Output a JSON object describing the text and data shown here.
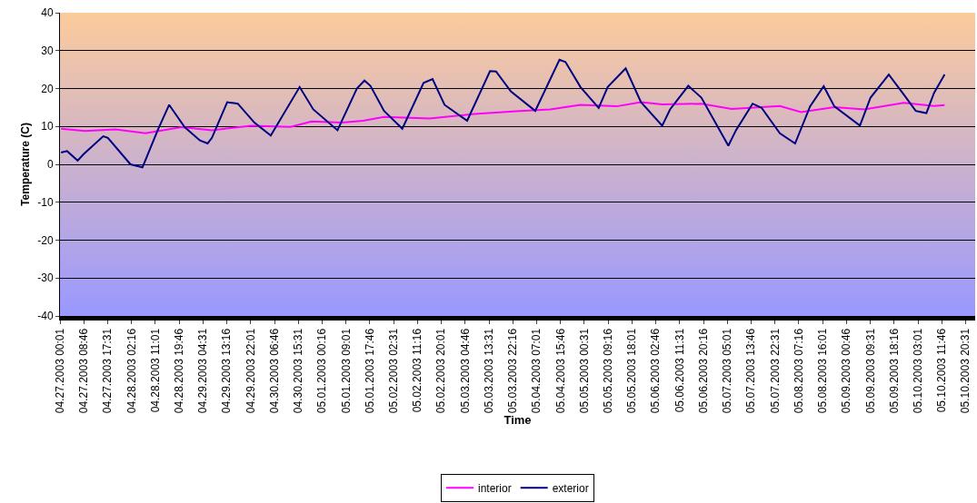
{
  "chart_data": {
    "type": "line",
    "xlabel": "Time",
    "ylabel": "Temperature (C)",
    "xlim": [
      "2003-04-27T00:01",
      "2003-05-11T00:01"
    ],
    "xticks": [
      {
        "value": "2003-04-27T00:01",
        "label": "04.27.2003 00:01"
      },
      {
        "value": "2003-04-27T08:46",
        "label": "04.27.2003 08:46"
      },
      {
        "value": "2003-04-27T17:31",
        "label": "04.27.2003 17:31"
      },
      {
        "value": "2003-04-28T02:16",
        "label": "04.28.2003 02:16"
      },
      {
        "value": "2003-04-28T11:01",
        "label": "04.28.2003 11:01"
      },
      {
        "value": "2003-04-28T19:46",
        "label": "04.28.2003 19:46"
      },
      {
        "value": "2003-04-29T04:31",
        "label": "04.29.2003 04:31"
      },
      {
        "value": "2003-04-29T13:16",
        "label": "04.29.2003 13:16"
      },
      {
        "value": "2003-04-29T22:01",
        "label": "04.29.2003 22:01"
      },
      {
        "value": "2003-04-30T06:46",
        "label": "04.30.2003 06:46"
      },
      {
        "value": "2003-04-30T15:31",
        "label": "04.30.2003 15:31"
      },
      {
        "value": "2003-05-01T00:16",
        "label": "05.01.2003 00:16"
      },
      {
        "value": "2003-05-01T09:01",
        "label": "05.01.2003 09:01"
      },
      {
        "value": "2003-05-01T17:46",
        "label": "05.01.2003 17:46"
      },
      {
        "value": "2003-05-02T02:31",
        "label": "05.02.2003 02:31"
      },
      {
        "value": "2003-05-02T11:16",
        "label": "05.02.2003 11:16"
      },
      {
        "value": "2003-05-02T20:01",
        "label": "05.02.2003 20:01"
      },
      {
        "value": "2003-05-03T04:46",
        "label": "05.03.2003 04:46"
      },
      {
        "value": "2003-05-03T13:31",
        "label": "05.03.2003 13:31"
      },
      {
        "value": "2003-05-03T22:16",
        "label": "05.03.2003 22:16"
      },
      {
        "value": "2003-05-04T07:01",
        "label": "05.04.2003 07:01"
      },
      {
        "value": "2003-05-04T15:46",
        "label": "05.04.2003 15:46"
      },
      {
        "value": "2003-05-05T00:31",
        "label": "05.05.2003 00:31"
      },
      {
        "value": "2003-05-05T09:16",
        "label": "05.05.2003 09:16"
      },
      {
        "value": "2003-05-05T18:01",
        "label": "05.05.2003 18:01"
      },
      {
        "value": "2003-05-06T02:46",
        "label": "05.06.2003 02:46"
      },
      {
        "value": "2003-05-06T11:31",
        "label": "05.06.2003 11:31"
      },
      {
        "value": "2003-05-06T20:16",
        "label": "05.06.2003 20:16"
      },
      {
        "value": "2003-05-07T05:01",
        "label": "05.07.2003 05:01"
      },
      {
        "value": "2003-05-07T13:46",
        "label": "05.07.2003 13:46"
      },
      {
        "value": "2003-05-07T22:31",
        "label": "05.07.2003 22:31"
      },
      {
        "value": "2003-05-08T07:16",
        "label": "05.08.2003 07:16"
      },
      {
        "value": "2003-05-08T16:01",
        "label": "05.08.2003 16:01"
      },
      {
        "value": "2003-05-09T00:46",
        "label": "05.09.2003 00:46"
      },
      {
        "value": "2003-05-09T09:31",
        "label": "05.09.2003 09:31"
      },
      {
        "value": "2003-05-09T18:16",
        "label": "05.09.2003 18:16"
      },
      {
        "value": "2003-05-10T03:01",
        "label": "05.10.2003 03:01"
      },
      {
        "value": "2003-05-10T11:46",
        "label": "05.10.2003 11:46"
      },
      {
        "value": "2003-05-10T20:31",
        "label": "05.10.2003 20:31"
      }
    ],
    "ylim": [
      -40,
      40
    ],
    "yticks": [
      -40,
      -30,
      -20,
      -10,
      0,
      10,
      20,
      30,
      40
    ],
    "grid": "y",
    "legend": "bottom",
    "marker": "none",
    "line_style": "solid",
    "series": [
      {
        "name": "interior",
        "color": "#ff00ff",
        "x": [
          "2003-04-27T00:24",
          "2003-04-27T09:12",
          "2003-04-27T20:24",
          "2003-04-28T07:24",
          "2003-04-28T20:42",
          "2003-04-29T07:48",
          "2003-04-29T22:18",
          "2003-04-30T12:42",
          "2003-04-30T20:24",
          "2003-05-01T07:30",
          "2003-05-01T15:18",
          "2003-05-01T23:00",
          "2003-05-02T15:42",
          "2003-05-03T08:18",
          "2003-05-04T00:54",
          "2003-05-04T12:00",
          "2003-05-04T23:06",
          "2003-05-05T12:24",
          "2003-05-05T21:18",
          "2003-05-06T05:06",
          "2003-05-06T19:30",
          "2003-05-07T06:36",
          "2003-05-08T00:18",
          "2003-05-08T08:06",
          "2003-05-08T20:18",
          "2003-05-09T07:18",
          "2003-05-09T21:48",
          "2003-05-10T08:54",
          "2003-05-10T12:48"
        ],
        "values": [
          9.4,
          8.8,
          9.2,
          8.2,
          9.8,
          9.0,
          10.2,
          9.9,
          11.3,
          11.0,
          11.5,
          12.5,
          12.1,
          13.3,
          14.1,
          14.5,
          15.7,
          15.3,
          16.4,
          15.8,
          16.0,
          14.6,
          15.4,
          13.8,
          15.1,
          14.5,
          16.2,
          15.4,
          15.6
        ]
      },
      {
        "name": "exterior",
        "color": "#000080",
        "x": [
          "2003-04-27T00:24",
          "2003-04-27T02:36",
          "2003-04-27T06:30",
          "2003-04-27T08:42",
          "2003-04-27T15:54",
          "2003-04-27T17:36",
          "2003-04-28T01:54",
          "2003-04-28T06:18",
          "2003-04-28T11:54",
          "2003-04-28T16:06",
          "2003-04-28T21:48",
          "2003-04-29T03:24",
          "2003-04-29T06:12",
          "2003-04-29T07:48",
          "2003-04-29T13:24",
          "2003-04-29T17:18",
          "2003-04-29T23:24",
          "2003-04-30T05:24",
          "2003-04-30T16:00",
          "2003-04-30T21:00",
          "2003-05-01T05:54",
          "2003-05-01T12:00",
          "2003-05-01T13:00",
          "2003-05-01T15:48",
          "2003-05-01T18:00",
          "2003-05-01T23:00",
          "2003-05-02T05:42",
          "2003-05-02T13:30",
          "2003-05-02T16:48",
          "2003-05-02T21:12",
          "2003-05-03T05:30",
          "2003-05-03T13:54",
          "2003-05-03T16:06",
          "2003-05-03T21:36",
          "2003-05-04T06:30",
          "2003-05-04T15:24",
          "2003-05-04T17:36",
          "2003-05-04T23:06",
          "2003-05-05T05:48",
          "2003-05-05T09:06",
          "2003-05-05T15:42",
          "2003-05-05T21:18",
          "2003-05-06T05:06",
          "2003-05-06T08:00",
          "2003-05-06T14:42",
          "2003-05-06T19:30",
          "2003-05-07T05:24",
          "2003-05-07T08:12",
          "2003-05-07T14:18",
          "2003-05-07T17:36",
          "2003-05-08T00:18",
          "2003-05-08T05:54",
          "2003-05-08T11:24",
          "2003-05-08T16:24",
          "2003-05-08T20:18",
          "2003-05-09T05:42",
          "2003-05-09T09:36",
          "2003-05-09T16:18",
          "2003-05-09T21:48",
          "2003-05-10T02:12",
          "2003-05-10T06:06",
          "2003-05-10T08:54",
          "2003-05-10T12:48"
        ],
        "values": [
          3.1,
          3.5,
          1.0,
          2.7,
          7.4,
          7.0,
          0,
          -0.8,
          9.0,
          15.7,
          9.8,
          6.3,
          5.5,
          7.0,
          16.4,
          16.0,
          11.0,
          7.6,
          20.4,
          14.5,
          9.0,
          18.4,
          20.0,
          22.1,
          20.7,
          14.1,
          9.4,
          21.5,
          22.5,
          15.7,
          11.5,
          24.6,
          24.5,
          19.2,
          14.1,
          27.6,
          27.0,
          20.4,
          14.9,
          20.4,
          25.3,
          16.4,
          10.2,
          14.5,
          20.7,
          17.6,
          4.9,
          9.0,
          16.0,
          14.9,
          8.2,
          5.5,
          15.3,
          20.6,
          15.3,
          10.2,
          17.6,
          23.7,
          18.4,
          14.1,
          13.5,
          18.8,
          23.7
        ]
      }
    ]
  }
}
